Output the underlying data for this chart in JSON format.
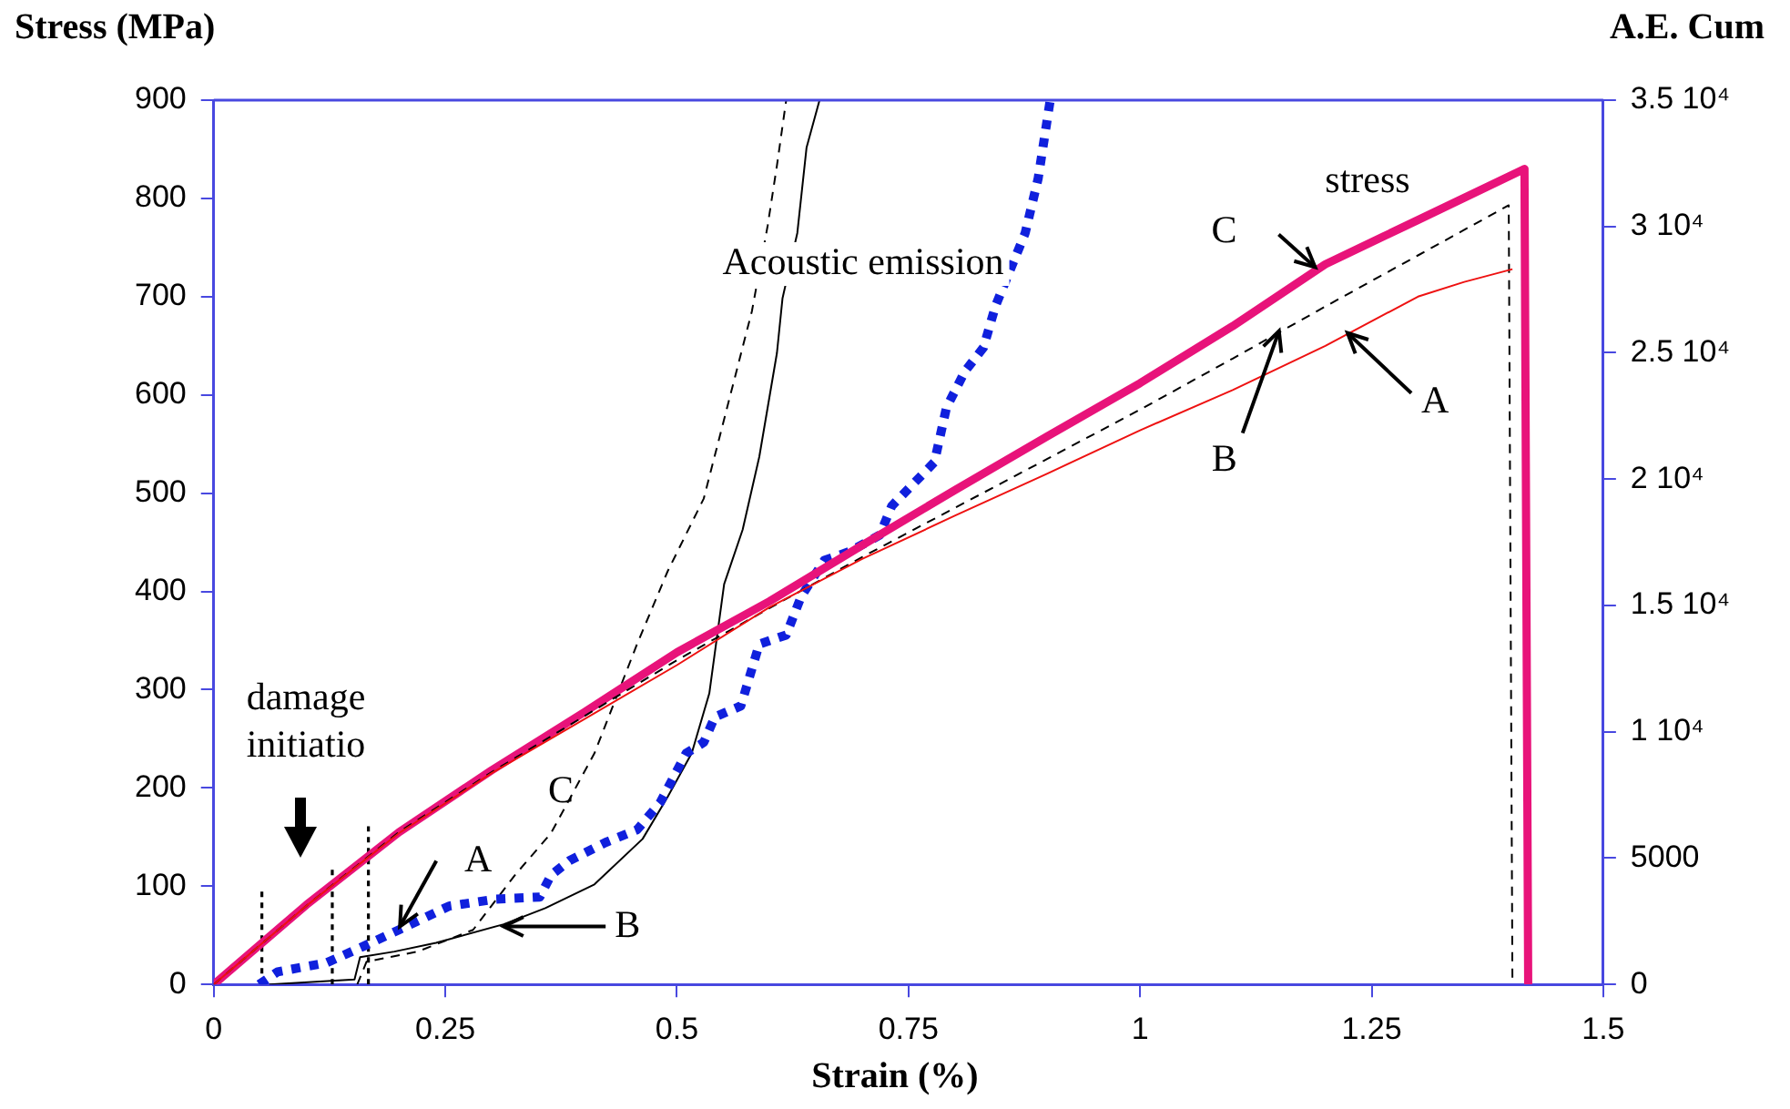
{
  "chart_data": {
    "type": "line",
    "xlabel": "Strain (%)",
    "ylabel": "Stress (MPa)",
    "y2label": "A.E. Cum",
    "xlim": [
      0,
      1.5
    ],
    "xticks": [
      0,
      0.25,
      0.5,
      0.75,
      1,
      1.25,
      1.5
    ],
    "ylim": [
      0,
      900
    ],
    "yticks": [
      0,
      100,
      200,
      300,
      400,
      500,
      600,
      700,
      800,
      900
    ],
    "y2lim": [
      0,
      35000
    ],
    "y2ticks": [
      0,
      5000,
      {
        "value": 10000,
        "label": "1 10⁴"
      },
      {
        "value": 15000,
        "label": "1.5 10⁴"
      },
      {
        "value": 20000,
        "label": "2 10⁴"
      },
      {
        "value": 25000,
        "label": "2.5 10⁴"
      },
      {
        "value": 30000,
        "label": "3 10⁴"
      },
      {
        "value": 35000,
        "label": "3.5 10⁴"
      }
    ],
    "grid": false,
    "legend": false,
    "marker": "none",
    "series": [
      {
        "color": "#ee1111",
        "line_style": "solid",
        "x": [
          0,
          0.1,
          0.2,
          0.3,
          0.4,
          0.5,
          0.6,
          0.7,
          0.8,
          0.9,
          1.0,
          1.1,
          1.2,
          1.3,
          1.35,
          1.402
        ],
        "values": [
          0,
          80,
          154,
          215,
          270,
          325,
          384,
          433,
          477,
          520,
          564,
          605,
          650,
          700,
          715,
          728
        ]
      },
      {
        "color": "#000000",
        "line_style": "dashed",
        "x": [
          0,
          0.1,
          0.2,
          0.3,
          0.4,
          0.5,
          0.6,
          0.7,
          0.8,
          0.9,
          1.0,
          1.1,
          1.2,
          1.3,
          1.398,
          1.402
        ],
        "values": [
          0,
          80,
          155,
          216,
          273,
          330,
          383,
          435,
          485,
          535,
          585,
          637,
          690,
          742,
          793,
          0
        ]
      },
      {
        "color": "#e8137a",
        "line_style": "solid",
        "x": [
          0,
          0.1,
          0.2,
          0.3,
          0.4,
          0.5,
          0.6,
          0.7,
          0.8,
          0.9,
          1.0,
          1.1,
          1.2,
          1.3,
          1.415,
          1.419
        ],
        "values": [
          0,
          81,
          155,
          218,
          277,
          338,
          390,
          447,
          503,
          558,
          612,
          670,
          733,
          778,
          830,
          0
        ]
      },
      {
        "color": "#1020dd",
        "line_style": "dotted",
        "axis": "y2",
        "x": [
          0.049,
          0.069,
          0.122,
          0.161,
          0.2,
          0.254,
          0.305,
          0.352,
          0.364,
          0.384,
          0.423,
          0.457,
          0.482,
          0.51,
          0.529,
          0.541,
          0.569,
          0.589,
          0.618,
          0.634,
          0.659,
          0.687,
          0.719,
          0.732,
          0.778,
          0.791,
          0.811,
          0.831,
          0.844,
          0.876,
          0.89,
          0.903
        ],
        "values": [
          0,
          500,
          860,
          1500,
          2160,
          3100,
          3380,
          3460,
          4320,
          4900,
          5620,
          6120,
          7200,
          9150,
          9580,
          10590,
          11020,
          13470,
          13830,
          15340,
          16780,
          17140,
          17790,
          18940,
          20670,
          22830,
          24270,
          25210,
          26860,
          29740,
          31900,
          35000
        ]
      },
      {
        "color": "#000000",
        "line_style": "solid",
        "axis": "y2",
        "x": [
          0.06,
          0.152,
          0.158,
          0.195,
          0.24,
          0.313,
          0.358,
          0.411,
          0.463,
          0.49,
          0.516,
          0.535,
          0.551,
          0.571,
          0.589,
          0.608,
          0.614,
          0.63,
          0.64,
          0.654
        ],
        "values": [
          0,
          200,
          1080,
          1300,
          1650,
          2380,
          3020,
          3960,
          5760,
          7420,
          9150,
          11520,
          15840,
          18000,
          20890,
          24990,
          27150,
          29740,
          33130,
          35000
        ]
      },
      {
        "color": "#000000",
        "line_style": "dashed",
        "axis": "y2",
        "x": [
          0.155,
          0.165,
          0.22,
          0.28,
          0.325,
          0.364,
          0.411,
          0.457,
          0.49,
          0.529,
          0.581,
          0.598,
          0.608,
          0.618
        ],
        "values": [
          0,
          900,
          1300,
          2160,
          4320,
          5980,
          9150,
          13470,
          16350,
          19230,
          26650,
          30030,
          32410,
          35000
        ]
      },
      {
        "color": "#000000",
        "line_style": "dotted",
        "x": [
          0.052,
          0.052
        ],
        "values": [
          0,
          96
        ]
      },
      {
        "color": "#000000",
        "line_style": "dotted",
        "x": [
          0.128,
          0.128
        ],
        "values": [
          0,
          117
        ]
      },
      {
        "color": "#000000",
        "line_style": "dotted",
        "x": [
          0.167,
          0.167
        ],
        "values": [
          0,
          161
        ]
      }
    ],
    "annotations": [
      "stress",
      {
        "text": "C",
        "x": 1.189,
        "y": 730
      },
      {
        "text": "B",
        "x": 1.15,
        "y": 665
      },
      {
        "text": "A",
        "x": 1.224,
        "y": 663
      },
      "Acoustic emission",
      "damage initiatio",
      {
        "text": "A",
        "x": 0.201,
        "y": 59
      },
      {
        "text": "B",
        "x": 0.313,
        "y": 59
      },
      "C"
    ]
  }
}
